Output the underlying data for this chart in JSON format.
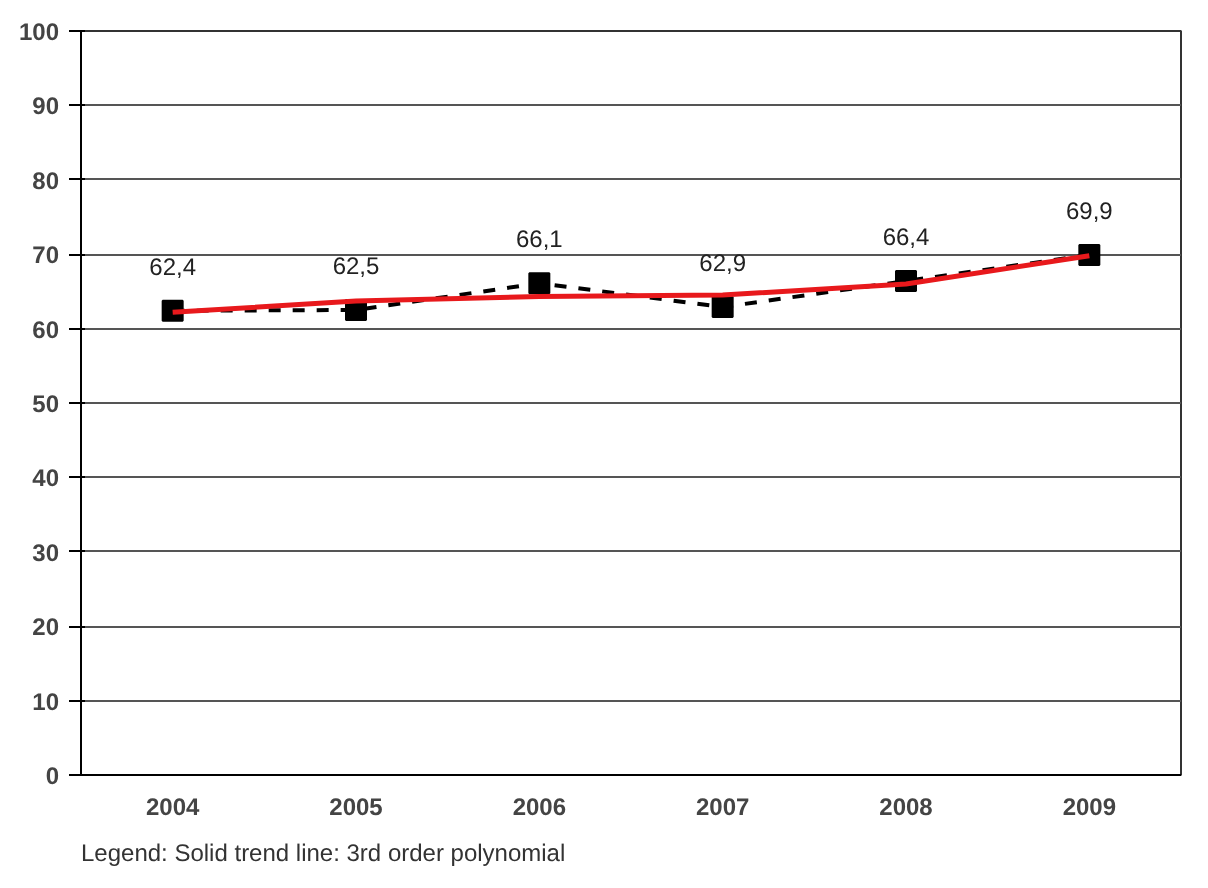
{
  "chart_data": {
    "type": "line",
    "categories": [
      "2004",
      "2005",
      "2006",
      "2007",
      "2008",
      "2009"
    ],
    "series": [
      {
        "color": "#000000",
        "values": [
          62.4,
          62.5,
          66.1,
          62.9,
          66.4,
          69.9
        ],
        "value_labels": [
          "62,4",
          "62,5",
          "66,1",
          "62,9",
          "66,4",
          "69,9"
        ],
        "marker": "square",
        "line_style": "dashed"
      },
      {
        "color": "#e8191c",
        "values": [
          62.2,
          63.7,
          64.3,
          64.5,
          66,
          69.8
        ],
        "marker": "none",
        "line_style": "solid"
      }
    ],
    "ylim": [
      0,
      100
    ],
    "yticks": [
      0,
      10,
      20,
      30,
      40,
      50,
      60,
      70,
      80,
      90,
      100
    ],
    "grid": "y",
    "annotations": [
      "Legend: Solid trend line: 3rd order polynomial"
    ]
  }
}
